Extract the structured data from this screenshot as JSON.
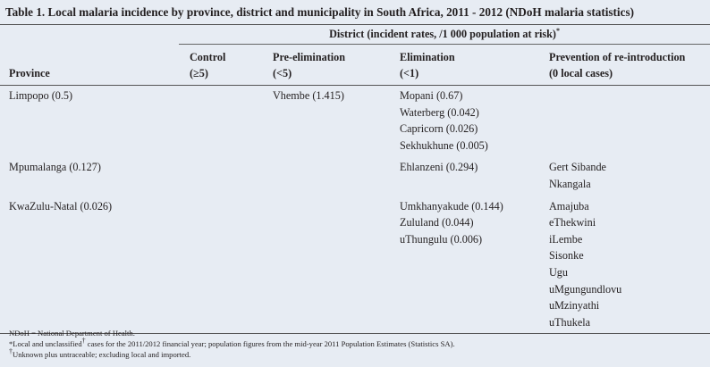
{
  "title": "Table 1. Local malaria incidence by province, district and municipality in South Africa, 2011 - 2012 (NDoH malaria statistics)",
  "table": {
    "group_header": {
      "text": "District (incident rates, /1 000 population at risk)",
      "sup": "*"
    },
    "columns": [
      {
        "label": "Province"
      },
      {
        "label": "Control",
        "sub": "(≥5)"
      },
      {
        "label": "Pre-elimination",
        "sub": "(<5)"
      },
      {
        "label": "Elimination",
        "sub": "(<1)"
      },
      {
        "label": "Prevention of re-introduction",
        "sub": "(0 local cases)"
      }
    ],
    "rows": [
      {
        "province": "Limpopo (0.5)",
        "control": [],
        "pre_elimination": [
          "Vhembe (1.415)"
        ],
        "elimination": [
          "Mopani (0.67)",
          "Waterberg (0.042)",
          "Capricorn (0.026)",
          "Sekhukhune (0.005)"
        ],
        "prevention": []
      },
      {
        "province": "Mpumalanga (0.127)",
        "control": [],
        "pre_elimination": [],
        "elimination": [
          "Ehlanzeni (0.294)"
        ],
        "prevention": [
          "Gert Sibande",
          "Nkangala"
        ]
      },
      {
        "province": "KwaZulu-Natal (0.026)",
        "control": [],
        "pre_elimination": [],
        "elimination": [
          "Umkhanyakude (0.144)",
          "Zululand (0.044)",
          "uThungulu (0.006)"
        ],
        "prevention": [
          "Amajuba",
          "eThekwini",
          "iLembe",
          "Sisonke",
          "Ugu",
          "uMgungundlovu",
          "uMzinyathi",
          "uThukela"
        ]
      }
    ]
  },
  "footnotes": [
    {
      "text": "NDoH = National Department of Health."
    },
    {
      "before": "*Local and unclassified",
      "sup": "†",
      "after": "cases for the 2011/2012 financial year; population figures from the mid-year 2011 Population Estimates (Statistics SA)."
    },
    {
      "sup": "†",
      "text": "Unknown plus untraceable; excluding local and imported."
    }
  ]
}
